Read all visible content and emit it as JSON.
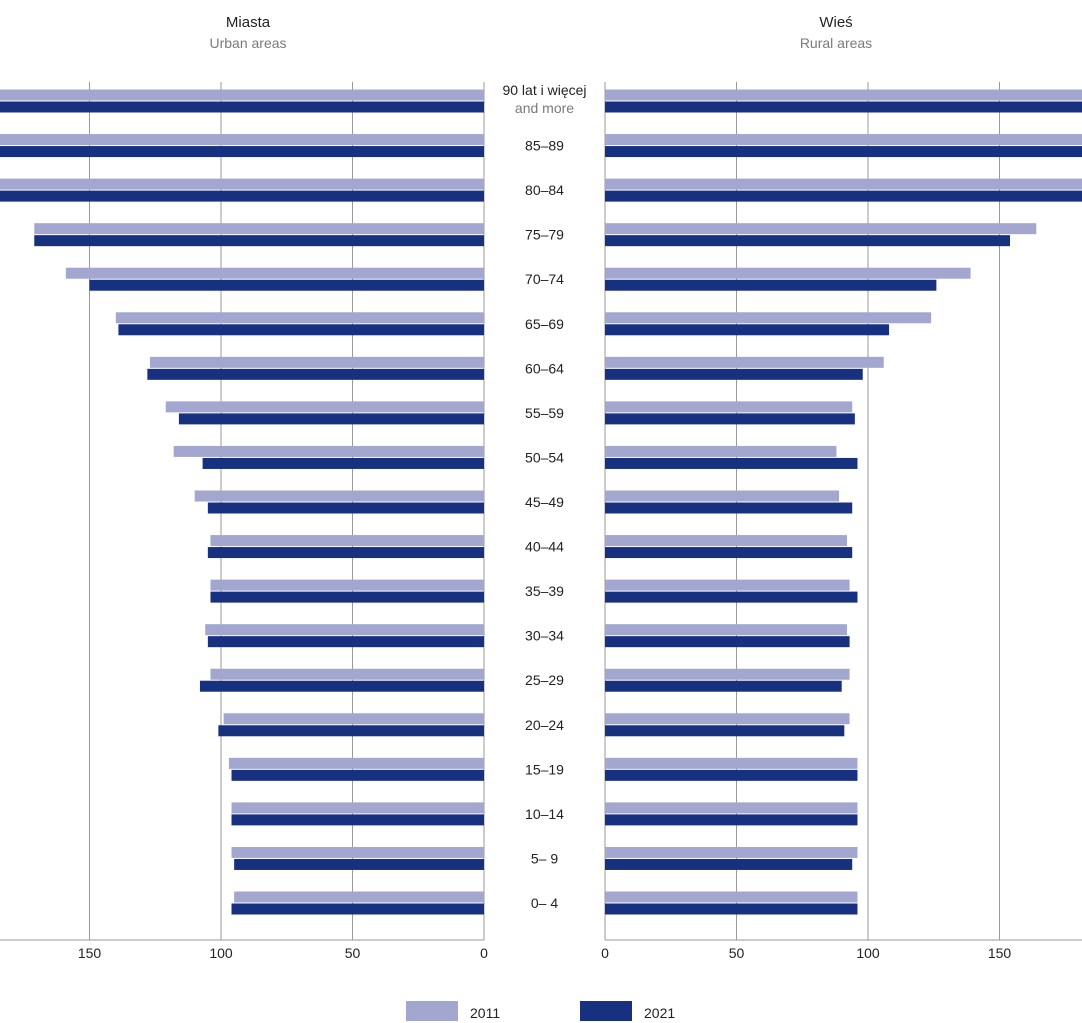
{
  "chart_data": {
    "type": "bar",
    "orientation": "horizontal",
    "left_panel": {
      "title": "Miasta",
      "subtitle": "Urban areas",
      "series": [
        {
          "name": "2011",
          "values": [
            95,
            96,
            96,
            97,
            99,
            104,
            106,
            104,
            104,
            110,
            118,
            121,
            127,
            140,
            159,
            171,
            187,
            241,
            344
          ]
        },
        {
          "name": "2021",
          "values": [
            96,
            95,
            96,
            96,
            101,
            108,
            105,
            104,
            105,
            105,
            107,
            116,
            128,
            139,
            150,
            171,
            202,
            228,
            263
          ]
        }
      ],
      "xlim": [
        0,
        350
      ],
      "ticks": [
        350,
        300,
        250,
        200,
        150,
        100,
        50,
        0
      ]
    },
    "right_panel": {
      "title": "Wieś",
      "subtitle": "Rural areas",
      "series": [
        {
          "name": "2011",
          "values": [
            96,
            96,
            96,
            96,
            93,
            93,
            92,
            93,
            92,
            89,
            88,
            94,
            106,
            124,
            139,
            164,
            200,
            250,
            296
          ]
        },
        {
          "name": "2021",
          "values": [
            96,
            94,
            96,
            96,
            91,
            90,
            93,
            96,
            94,
            94,
            96,
            95,
            98,
            108,
            126,
            154,
            192,
            240,
            321
          ]
        }
      ],
      "xlim": [
        0,
        350
      ],
      "ticks": [
        0,
        50,
        100,
        150,
        200,
        250,
        300,
        350
      ]
    },
    "categories": [
      "0– 4",
      "5– 9",
      "10–14",
      "15–19",
      "20–24",
      "25–29",
      "30–34",
      "35–39",
      "40–44",
      "45–49",
      "50–54",
      "55–59",
      "60–64",
      "65–69",
      "70–74",
      "75–79",
      "80–84",
      "85–89",
      "90 lat i więcej"
    ],
    "top_category_sublabel": "and more",
    "legend": [
      {
        "label": "2011",
        "color": "#a3a7cf"
      },
      {
        "label": "2021",
        "color": "#17307f"
      }
    ],
    "legend_position": "bottom-center",
    "grid": true,
    "colors": {
      "series_2011": "#a3a7cf",
      "series_2021": "#17307f",
      "grid": "#9a9a9a"
    }
  }
}
